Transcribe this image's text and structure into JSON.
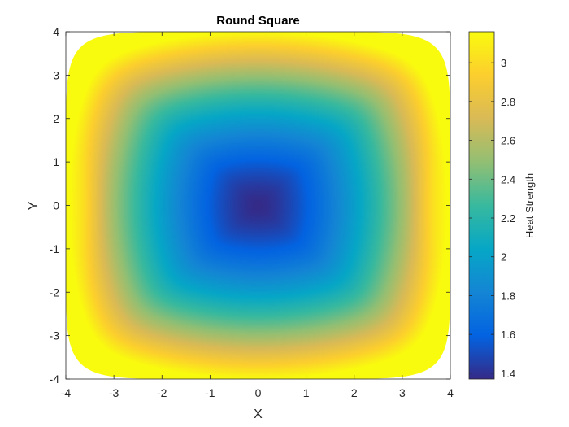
{
  "chart_data": {
    "type": "heatmap",
    "title": "Round Square",
    "xlabel": "X",
    "ylabel": "Y",
    "xlim": [
      -4,
      4
    ],
    "ylim": [
      -4,
      4
    ],
    "xticks": [
      -4,
      -3,
      -2,
      -1,
      0,
      1,
      2,
      3,
      4
    ],
    "yticks": [
      -4,
      -3,
      -2,
      -1,
      0,
      1,
      2,
      3,
      4
    ],
    "grid": false,
    "region": "rounded square (superellipse) spanning x,y in [-4, 4]",
    "colormap": "parula",
    "colorbar": {
      "label": "Heat Strength",
      "range": [
        1.37,
        3.16
      ],
      "ticks": [
        1.4,
        1.6,
        1.8,
        2,
        2.2,
        2.4,
        2.6,
        2.8,
        3
      ],
      "placement": "right"
    },
    "field_samples": [
      {
        "x": 0,
        "y": 0,
        "value": 1.37
      },
      {
        "x": 0,
        "y": 1.5,
        "value": 1.7
      },
      {
        "x": 0,
        "y": 2.5,
        "value": 2.2
      },
      {
        "x": 0,
        "y": 3.3,
        "value": 2.8
      },
      {
        "x": 0,
        "y": 3.9,
        "value": 3.16
      },
      {
        "x": 2,
        "y": 0,
        "value": 1.8
      },
      {
        "x": 3,
        "y": 0,
        "value": 2.3
      },
      {
        "x": 3.7,
        "y": 0,
        "value": 2.8
      },
      {
        "x": 3.5,
        "y": 2.5,
        "value": 3.1
      }
    ]
  },
  "colors": {
    "colormap_stops": [
      "#352a87",
      "#0363e1",
      "#1485d4",
      "#06a7c6",
      "#38b99e",
      "#92bf73",
      "#d9ba56",
      "#fcce2e",
      "#f9fb0e"
    ]
  }
}
